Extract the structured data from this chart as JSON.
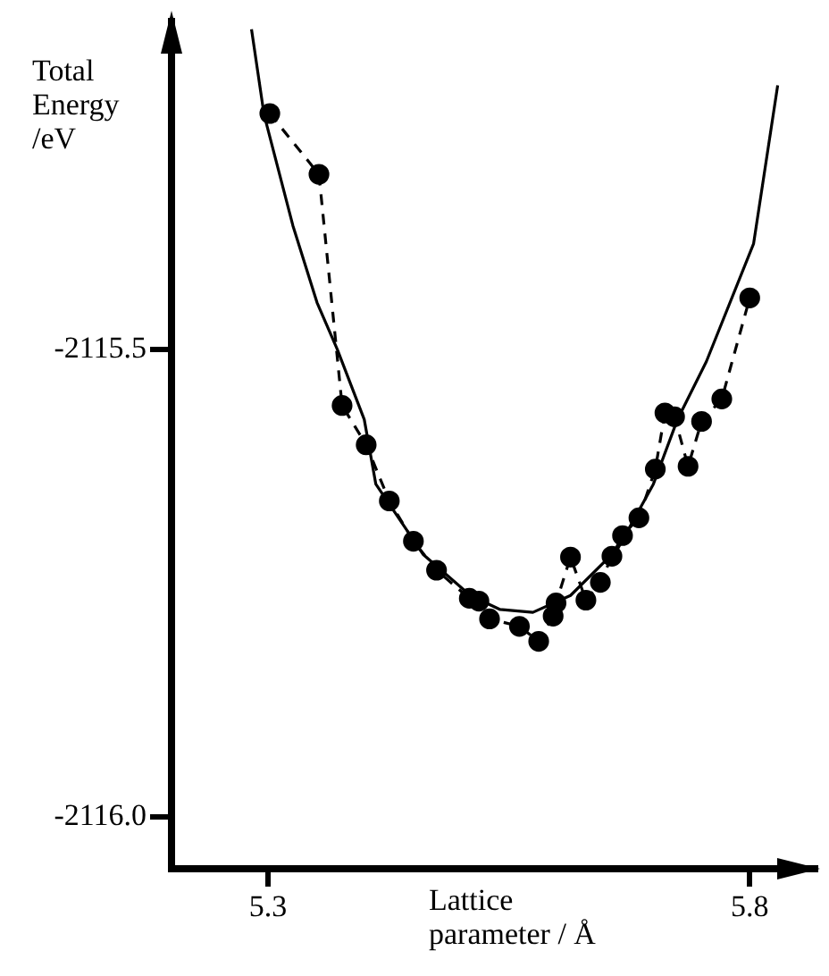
{
  "chart_data": {
    "type": "line",
    "xlabel": "Lattice parameter / Å",
    "ylabel": "Total Energy /eV",
    "xlim": [
      5.2,
      5.87
    ],
    "ylim": [
      -2116.055,
      -2115.15
    ],
    "xticks": [
      5.3,
      5.8
    ],
    "yticks": [
      -2115.5,
      {
        "value": -2116.0,
        "label": "-2116.0"
      }
    ],
    "series": [
      {
        "color": "#000000",
        "marker": "circle",
        "line_style": "dashed",
        "x": [
          5.302,
          5.353,
          5.377,
          5.402,
          5.426,
          5.451,
          5.475,
          5.509,
          5.519,
          5.53,
          5.561,
          5.581,
          5.596,
          5.599,
          5.614,
          5.63,
          5.645,
          5.657,
          5.668,
          5.685,
          5.702,
          5.712,
          5.722,
          5.736,
          5.75,
          5.771,
          5.8
        ],
        "values": [
          -2115.248,
          -2115.313,
          -2115.56,
          -2115.602,
          -2115.662,
          -2115.705,
          -2115.736,
          -2115.766,
          -2115.769,
          -2115.788,
          -2115.796,
          -2115.812,
          -2115.785,
          -2115.771,
          -2115.722,
          -2115.768,
          -2115.749,
          -2115.721,
          -2115.699,
          -2115.68,
          -2115.628,
          -2115.568,
          -2115.572,
          -2115.625,
          -2115.577,
          -2115.553,
          -2115.445
        ]
      },
      {
        "color": "#000000",
        "marker": "none",
        "line_style": "solid",
        "x": [
          5.283,
          5.296,
          5.326,
          5.351,
          5.372,
          5.4,
          5.412,
          5.461,
          5.51,
          5.541,
          5.575,
          5.614,
          5.663,
          5.7,
          5.725,
          5.755,
          5.804,
          5.829
        ],
        "values": [
          -2115.158,
          -2115.249,
          -2115.368,
          -2115.45,
          -2115.5,
          -2115.575,
          -2115.644,
          -2115.719,
          -2115.763,
          -2115.778,
          -2115.781,
          -2115.763,
          -2115.713,
          -2115.644,
          -2115.575,
          -2115.513,
          -2115.387,
          -2115.218
        ]
      }
    ]
  }
}
